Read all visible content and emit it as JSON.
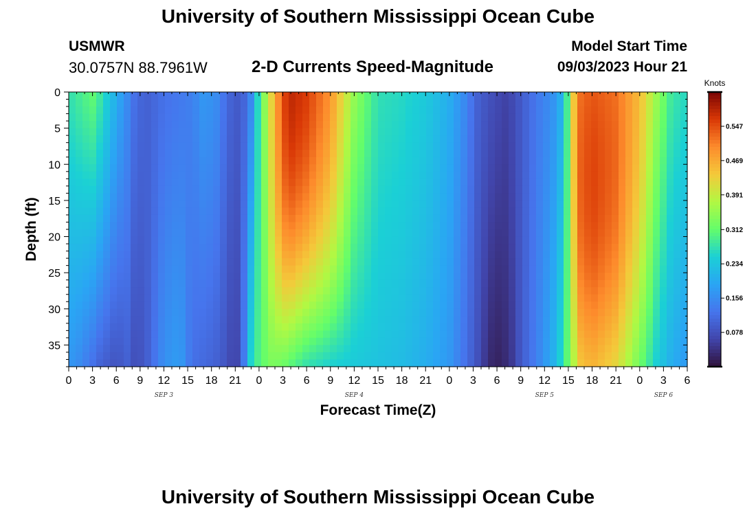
{
  "page": {
    "title": "University of Southern Mississippi Ocean Cube",
    "station": "USMWR",
    "coordinates": "30.0757N  88.7961W",
    "subtitle": "2-D Currents Speed-Magnitude",
    "model_start_label": "Model Start Time",
    "model_start_value": "09/03/2023 Hour 21",
    "footer_title": "University of Southern Mississippi Ocean Cube"
  },
  "chart_data": {
    "type": "heatmap",
    "title": "2-D Currents Speed-Magnitude",
    "xlabel": "Forecast Time(Z)",
    "ylabel": "Depth (ft)",
    "x_tick_labels": [
      "0",
      "3",
      "6",
      "9",
      "12",
      "15",
      "18",
      "21",
      "0",
      "3",
      "6",
      "9",
      "12",
      "15",
      "18",
      "21",
      "0",
      "3",
      "6",
      "9",
      "12",
      "15",
      "18",
      "21",
      "0",
      "3",
      "6"
    ],
    "x_range_hours": [
      0,
      78
    ],
    "date_labels": [
      {
        "label": "SEP 3",
        "hour": 12
      },
      {
        "label": "SEP 4",
        "hour": 36
      },
      {
        "label": "SEP 5",
        "hour": 60
      },
      {
        "label": "SEP 6",
        "hour": 75
      }
    ],
    "y_ticks": [
      0,
      5,
      10,
      15,
      20,
      25,
      30,
      35
    ],
    "y_range_ft": [
      0,
      38
    ],
    "colorbar": {
      "unit": "Knots",
      "range": [
        0.0,
        0.625
      ],
      "tick_labels": [
        "0.547",
        "0.469",
        "0.391",
        "0.312",
        "0.234",
        "0.156",
        "0.078"
      ],
      "tick_values": [
        0.547,
        0.469,
        0.391,
        0.312,
        0.234,
        0.156,
        0.078
      ]
    },
    "time_profile_hours": [
      0,
      1.5,
      3,
      4,
      6,
      7.5,
      8.5,
      10,
      12,
      14,
      15.5,
      17,
      18.5,
      20,
      21,
      22,
      23,
      24,
      25.5,
      27,
      28,
      30,
      33,
      36,
      39,
      42,
      45,
      48,
      50,
      51.5,
      53,
      54,
      55,
      56,
      57,
      59,
      61,
      62.5,
      63.5,
      64.5,
      66,
      69,
      72,
      74,
      76,
      78
    ],
    "speed_profile_surface_knots": [
      0.27,
      0.29,
      0.31,
      0.28,
      0.2,
      0.15,
      0.11,
      0.1,
      0.12,
      0.13,
      0.14,
      0.17,
      0.16,
      0.11,
      0.09,
      0.1,
      0.15,
      0.28,
      0.42,
      0.55,
      0.58,
      0.56,
      0.49,
      0.35,
      0.27,
      0.26,
      0.24,
      0.2,
      0.15,
      0.1,
      0.08,
      0.07,
      0.06,
      0.07,
      0.09,
      0.13,
      0.16,
      0.22,
      0.42,
      0.52,
      0.54,
      0.52,
      0.45,
      0.36,
      0.28,
      0.26
    ],
    "speed_profile_bottom_knots": [
      0.17,
      0.15,
      0.12,
      0.1,
      0.08,
      0.1,
      0.07,
      0.1,
      0.16,
      0.18,
      0.12,
      0.11,
      0.1,
      0.08,
      0.05,
      0.12,
      0.26,
      0.3,
      0.33,
      0.32,
      0.3,
      0.27,
      0.25,
      0.24,
      0.23,
      0.22,
      0.2,
      0.17,
      0.12,
      0.08,
      0.03,
      0.02,
      0.03,
      0.05,
      0.09,
      0.14,
      0.2,
      0.28,
      0.36,
      0.44,
      0.46,
      0.42,
      0.32,
      0.25,
      0.2,
      0.17
    ]
  }
}
